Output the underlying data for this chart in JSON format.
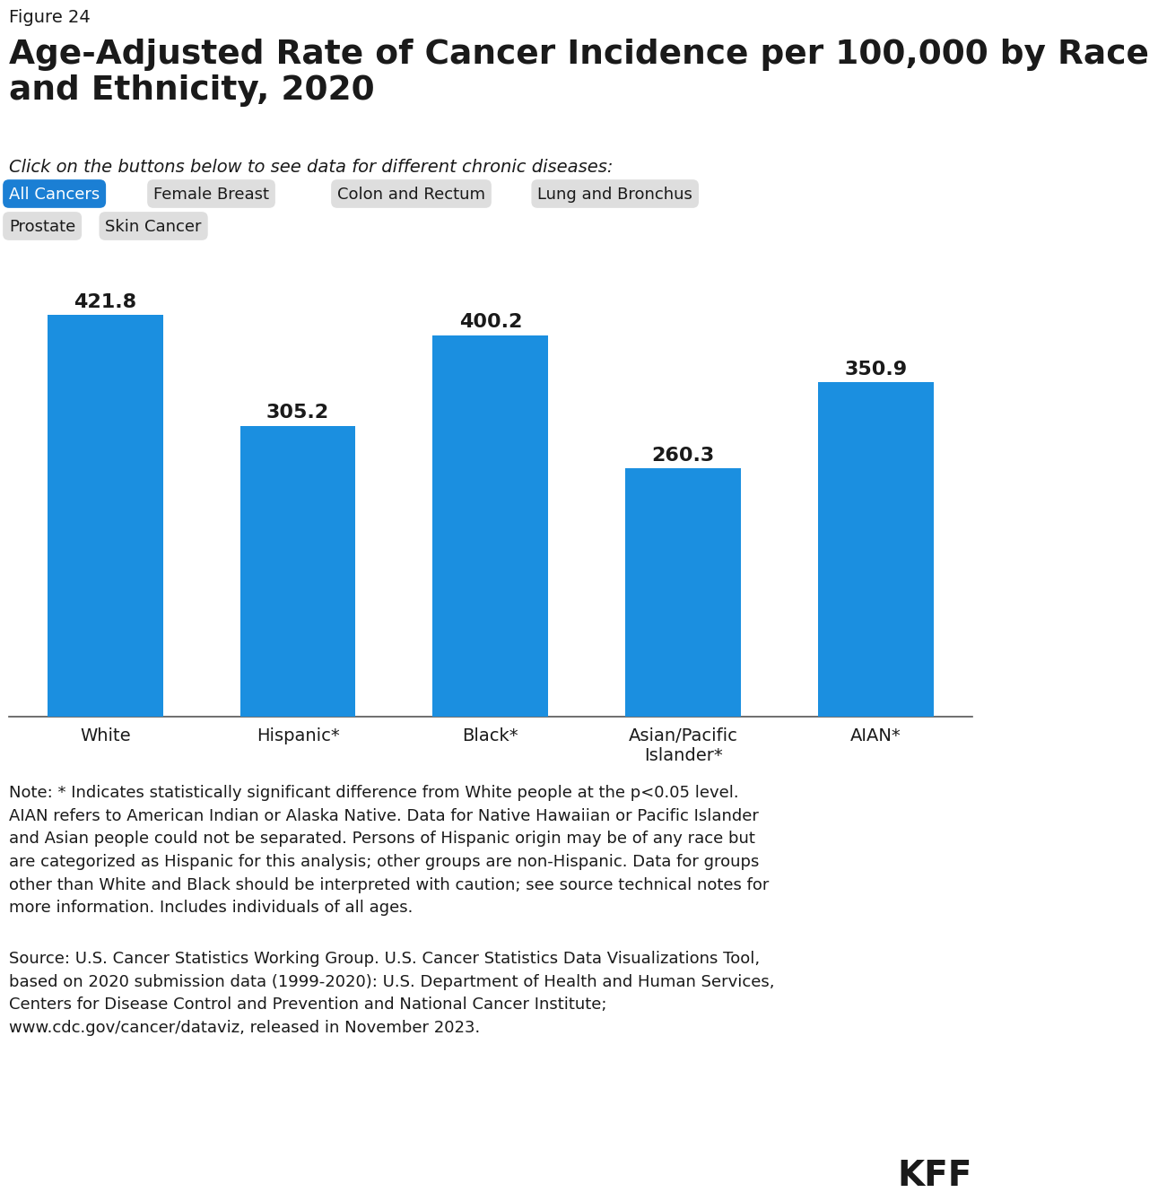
{
  "figure_label": "Figure 24",
  "title": "Age-Adjusted Rate of Cancer Incidence per 100,000 by Race\nand Ethnicity, 2020",
  "subtitle": "Click on the buttons below to see data for different chronic diseases:",
  "buttons_row1": [
    "All Cancers",
    "Female Breast",
    "Colon and Rectum",
    "Lung and Bronchus"
  ],
  "buttons_row2": [
    "Prostate",
    "Skin Cancer"
  ],
  "active_button_color": "#1B7FD4",
  "inactive_button_color": "#DEDEDE",
  "categories": [
    "White",
    "Hispanic*",
    "Black*",
    "Asian/Pacific\nIslander*",
    "AIAN*"
  ],
  "values": [
    421.8,
    305.2,
    400.2,
    260.3,
    350.9
  ],
  "bar_color": "#1B8FE0",
  "bar_value_color": "#1a1a1a",
  "ylim": [
    0,
    480
  ],
  "background_color": "#ffffff",
  "note_text": "Note: * Indicates statistically significant difference from White people at the p<0.05 level.\nAIAN refers to American Indian or Alaska Native. Data for Native Hawaiian or Pacific Islander\nand Asian people could not be separated. Persons of Hispanic origin may be of any race but\nare categorized as Hispanic for this analysis; other groups are non-Hispanic. Data for groups\nother than White and Black should be interpreted with caution; see source technical notes for\nmore information. Includes individuals of all ages.",
  "source_text": "Source: U.S. Cancer Statistics Working Group. U.S. Cancer Statistics Data Visualizations Tool,\nbased on 2020 submission data (1999-2020): U.S. Department of Health and Human Services,\nCenters for Disease Control and Prevention and National Cancer Institute;\nwww.cdc.gov/cancer/dataviz, released in November 2023.",
  "kff_label": "KFF",
  "title_fontsize": 27,
  "figure_label_fontsize": 14,
  "subtitle_fontsize": 14,
  "button_fontsize": 13,
  "bar_value_fontsize": 16,
  "tick_fontsize": 14,
  "note_fontsize": 13,
  "source_fontsize": 13,
  "kff_fontsize": 28
}
